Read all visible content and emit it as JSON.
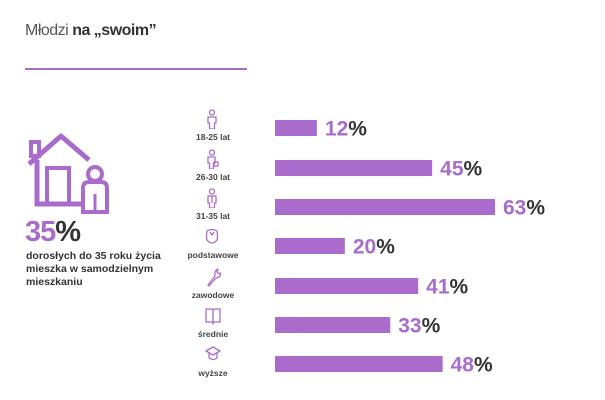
{
  "header": {
    "title_light": "Młodzi",
    "title_bold": "na „swoim”"
  },
  "summary": {
    "value": "35",
    "unit": "%",
    "description": "dorosłych do 35 roku życia mieszka w samodzielnym mieszkaniu"
  },
  "colors": {
    "accent": "#a96ccc",
    "text": "#333333"
  },
  "chart_data": {
    "type": "bar",
    "orientation": "horizontal",
    "title": "Młodzi na „swoim”",
    "categories": [
      "18-25 lat",
      "26-30 lat",
      "31-35 lat",
      "podstawowe",
      "zawodowe",
      "średnie",
      "wyższe"
    ],
    "icons": [
      "person-icon",
      "person-with-bag-icon",
      "person-suit-icon",
      "shield-icon",
      "wrench-icon",
      "book-icon",
      "graduation-cap-icon"
    ],
    "values": [
      12,
      45,
      63,
      20,
      41,
      33,
      48
    ],
    "unit": "%",
    "xlim": [
      0,
      63
    ],
    "grid": false,
    "legend": "none"
  }
}
